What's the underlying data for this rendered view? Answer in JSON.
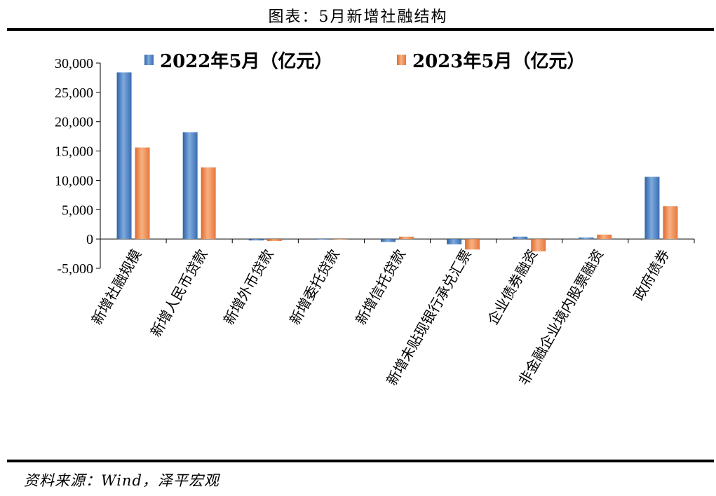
{
  "header": {
    "title": "图表：5月新增社融结构"
  },
  "footer": {
    "source": "资料来源：Wind，泽平宏观"
  },
  "colors": {
    "series_2022": "#4a7fc1",
    "series_2023": "#f08a4b"
  },
  "chart_data": {
    "type": "bar",
    "categories": [
      "新增社融规模",
      "新增人民币贷款",
      "新增外币贷款",
      "新增委托贷款",
      "新增信托贷款",
      "新增未贴现银行承兑汇票",
      "企业债券融资",
      "非金融企业境内股票融资",
      "政府债券"
    ],
    "series": [
      {
        "name": "2022年5月（亿元）",
        "values": [
          28400,
          18200,
          -250,
          -30,
          -500,
          -900,
          400,
          250,
          10600
        ]
      },
      {
        "name": "2023年5月（亿元）",
        "values": [
          15600,
          12200,
          -350,
          -30,
          400,
          -1800,
          -2100,
          750,
          5600
        ]
      }
    ],
    "yticks": [
      "30,000",
      "25,000",
      "20,000",
      "15,000",
      "10,000",
      "5,000",
      "0",
      "-5,000"
    ],
    "ylim": [
      -5000,
      30000
    ],
    "grid": false,
    "legend_position": "top"
  }
}
